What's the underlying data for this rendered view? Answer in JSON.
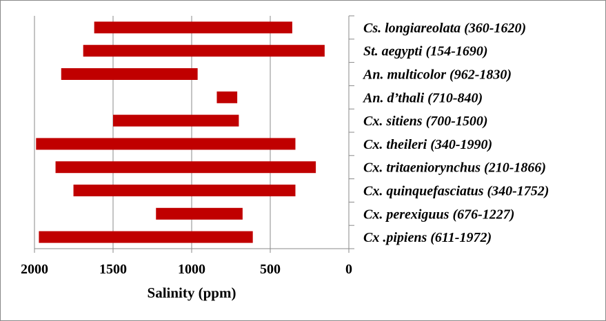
{
  "chart_data": {
    "type": "bar",
    "orientation": "horizontal-range",
    "title": "",
    "xlabel": "Salinity (ppm)",
    "ylabel": "",
    "xlim": [
      2000,
      0
    ],
    "x_reversed": true,
    "grid": true,
    "xticks": [
      "2000",
      "1500",
      "1000",
      "500",
      "0"
    ],
    "xtick_values": [
      2000,
      1500,
      1000,
      500,
      0
    ],
    "bar_color": "#c00000",
    "series": [
      {
        "label": "Cs. longiareolata (360-1620)",
        "min": 360,
        "max": 1620
      },
      {
        "label": "St. aegypti (154-1690)",
        "min": 154,
        "max": 1690
      },
      {
        "label": "An. multicolor (962-1830)",
        "min": 962,
        "max": 1830
      },
      {
        "label": "An. d’thali (710-840)",
        "min": 710,
        "max": 840
      },
      {
        "label": "Cx. sitiens (700-1500)",
        "min": 700,
        "max": 1500
      },
      {
        "label": "Cx. theileri (340-1990)",
        "min": 340,
        "max": 1990
      },
      {
        "label": "Cx. tritaeniorynchus (210-1866)",
        "min": 210,
        "max": 1866
      },
      {
        "label": "Cx. quinquefasciatus (340-1752)",
        "min": 340,
        "max": 1752
      },
      {
        "label": "Cx. perexiguus (676-1227)",
        "min": 676,
        "max": 1227
      },
      {
        "label": "Cx .pipiens (611-1972)",
        "min": 611,
        "max": 1972
      }
    ]
  }
}
